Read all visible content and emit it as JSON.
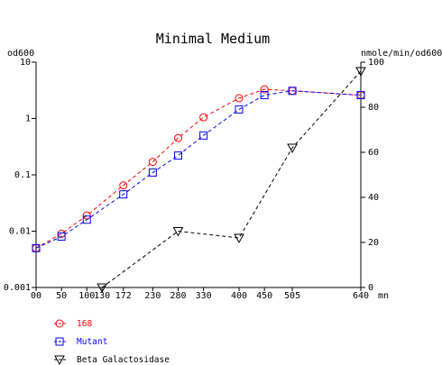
{
  "chart_data": {
    "type": "line",
    "title": "Minimal Medium",
    "left_axis_label": "od600",
    "right_axis_label": "nmole/min/od600",
    "x_unit": "mn",
    "x_ticks": [
      0,
      50,
      100,
      130,
      172,
      230,
      280,
      330,
      400,
      450,
      505,
      640
    ],
    "x_tick_labels": [
      "00",
      "50",
      "100",
      "130",
      "172",
      "230",
      "280",
      "330",
      "400",
      "450",
      "505",
      "640"
    ],
    "left_ticks": [
      "0.001",
      "0.01",
      "0.1",
      "1",
      "10"
    ],
    "left_scale": "log",
    "left_range": [
      0.001,
      10
    ],
    "right_ticks": [
      "0",
      "20",
      "40",
      "60",
      "80",
      "100"
    ],
    "right_range": [
      0,
      100
    ],
    "grid": false,
    "legend_position": "bottom-left",
    "series": [
      {
        "name": "168",
        "axis": "left",
        "color": "#ff0000",
        "marker": "circle",
        "x": [
          0,
          50,
          100,
          172,
          230,
          280,
          330,
          400,
          450,
          505,
          640
        ],
        "y": [
          0.005,
          0.009,
          0.019,
          0.065,
          0.17,
          0.45,
          1.05,
          2.3,
          3.3,
          3.1,
          2.6
        ]
      },
      {
        "name": "Mutant",
        "axis": "left",
        "color": "#0000ff",
        "marker": "square",
        "x": [
          0,
          50,
          100,
          172,
          230,
          280,
          330,
          400,
          450,
          505,
          640
        ],
        "y": [
          0.005,
          0.008,
          0.016,
          0.045,
          0.11,
          0.22,
          0.5,
          1.45,
          2.6,
          3.1,
          2.6
        ]
      },
      {
        "name": "Beta Galactosidase",
        "axis": "right",
        "color": "#000000",
        "marker": "triangle-down",
        "x": [
          130,
          280,
          400,
          505,
          640
        ],
        "y": [
          0,
          25,
          22,
          62,
          96
        ]
      }
    ]
  }
}
